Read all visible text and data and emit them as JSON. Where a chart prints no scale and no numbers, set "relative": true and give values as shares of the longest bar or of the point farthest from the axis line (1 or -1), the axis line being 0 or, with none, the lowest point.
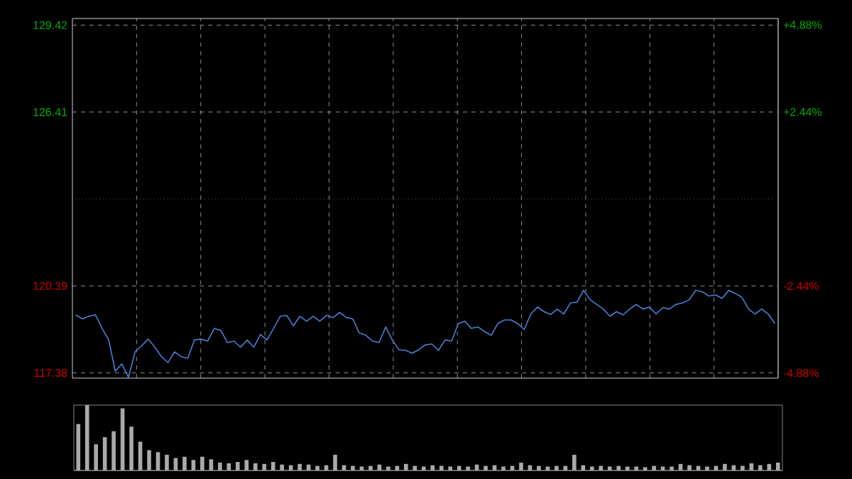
{
  "chart_data": [
    {
      "type": "line",
      "color": "#4a7fd4",
      "marker": "none",
      "grid": true,
      "tick_labels": "y",
      "categories": [
        null,
        null,
        null,
        null,
        null,
        null,
        null,
        null,
        null,
        null,
        null,
        null,
        null,
        null,
        null,
        null,
        null,
        null,
        null,
        null,
        null,
        null,
        null,
        null,
        null,
        null,
        null,
        null,
        null,
        null,
        null,
        null,
        null,
        null,
        null,
        null,
        null,
        null,
        null,
        null,
        null,
        null,
        null,
        null,
        null,
        null,
        null,
        null,
        null,
        null,
        null,
        null,
        null,
        null,
        null,
        null,
        null,
        null,
        null,
        null,
        null,
        null,
        null,
        null,
        null,
        null,
        null,
        null,
        null,
        null,
        null,
        null,
        null,
        null,
        null,
        null,
        null,
        null,
        null,
        null,
        null,
        null,
        null,
        null,
        null,
        null,
        null,
        null,
        null,
        null,
        null,
        null,
        null,
        null,
        null,
        null,
        null,
        null,
        null,
        null,
        null,
        null,
        null,
        null,
        null,
        null,
        null
      ],
      "values": [
        119.39,
        119.25,
        119.34,
        119.39,
        118.92,
        118.52,
        117.44,
        117.69,
        117.23,
        118.11,
        118.32,
        118.55,
        118.27,
        117.94,
        117.74,
        118.11,
        117.94,
        117.89,
        118.52,
        118.55,
        118.48,
        118.92,
        118.85,
        118.43,
        118.48,
        118.27,
        118.52,
        118.27,
        118.71,
        118.52,
        118.92,
        119.34,
        119.37,
        119.01,
        119.34,
        119.17,
        119.34,
        119.17,
        119.37,
        119.29,
        119.47,
        119.3,
        119.25,
        118.76,
        118.68,
        118.48,
        118.43,
        118.97,
        118.52,
        118.18,
        118.16,
        118.06,
        118.18,
        118.35,
        118.38,
        118.16,
        118.52,
        118.48,
        119.09,
        119.17,
        118.92,
        118.97,
        118.81,
        118.68,
        119.09,
        119.21,
        119.21,
        119.09,
        118.88,
        119.42,
        119.66,
        119.5,
        119.4,
        119.59,
        119.42,
        119.8,
        119.83,
        120.24,
        119.91,
        119.75,
        119.59,
        119.34,
        119.5,
        119.39,
        119.59,
        119.75,
        119.59,
        119.66,
        119.42,
        119.64,
        119.59,
        119.75,
        119.8,
        119.91,
        120.24,
        120.19,
        120.04,
        120.08,
        119.96,
        120.24,
        120.13,
        120.0,
        119.59,
        119.42,
        119.59,
        119.42,
        119.09
      ],
      "ylim": [
        117.2,
        129.65
      ],
      "yticks": [
        117.38,
        120.39,
        126.41,
        129.42
      ],
      "y2lim": [
        -5.02,
        5.06
      ],
      "y2ticks": [
        {
          "value": -4.88,
          "label": "-4.88%"
        },
        {
          "value": -2.44,
          "label": "-2.44%"
        },
        {
          "value": 2.44,
          "label": "+2.44%"
        },
        {
          "value": 4.88,
          "label": "+4.88%"
        }
      ],
      "ref_lines": [
        {
          "axis": "y",
          "value": 123.4,
          "color": "#888888",
          "line_style": "dotted"
        }
      ]
    },
    {
      "type": "bar",
      "relative": true,
      "color": "#aaaaaa",
      "categories": [
        null,
        null,
        null,
        null,
        null,
        null,
        null,
        null,
        null,
        null,
        null,
        null,
        null,
        null,
        null,
        null,
        null,
        null,
        null,
        null,
        null,
        null,
        null,
        null,
        null,
        null,
        null,
        null,
        null,
        null,
        null,
        null,
        null,
        null,
        null,
        null,
        null,
        null,
        null,
        null,
        null,
        null,
        null,
        null,
        null,
        null,
        null,
        null,
        null,
        null,
        null,
        null,
        null,
        null,
        null,
        null,
        null,
        null,
        null,
        null,
        null,
        null,
        null,
        null,
        null,
        null,
        null,
        null,
        null,
        null,
        null,
        null,
        null,
        null,
        null,
        null,
        null,
        null,
        null,
        null
      ],
      "values": [
        0.71,
        1.0,
        0.4,
        0.51,
        0.6,
        0.95,
        0.67,
        0.44,
        0.31,
        0.28,
        0.24,
        0.19,
        0.21,
        0.16,
        0.21,
        0.17,
        0.12,
        0.11,
        0.13,
        0.16,
        0.11,
        0.1,
        0.13,
        0.09,
        0.08,
        0.1,
        0.09,
        0.07,
        0.08,
        0.24,
        0.08,
        0.07,
        0.06,
        0.07,
        0.09,
        0.06,
        0.07,
        0.1,
        0.07,
        0.06,
        0.08,
        0.07,
        0.06,
        0.07,
        0.06,
        0.09,
        0.07,
        0.08,
        0.06,
        0.07,
        0.12,
        0.08,
        0.07,
        0.06,
        0.07,
        0.07,
        0.24,
        0.08,
        0.06,
        0.07,
        0.06,
        0.07,
        0.06,
        0.06,
        0.05,
        0.07,
        0.06,
        0.06,
        0.1,
        0.08,
        0.07,
        0.06,
        0.07,
        0.1,
        0.08,
        0.07,
        0.11,
        0.08,
        0.1,
        0.12
      ]
    }
  ]
}
